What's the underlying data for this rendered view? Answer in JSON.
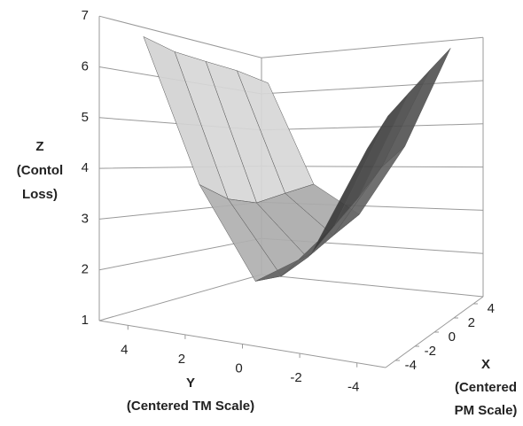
{
  "chart_data": {
    "type": "surface",
    "z_label": [
      "Z",
      "(Contol",
      "Loss)"
    ],
    "y_label": [
      "Y",
      "(Centered TM Scale)"
    ],
    "x_label": [
      "X",
      "(Centered",
      "PM Scale)"
    ],
    "x": [
      -4,
      -2,
      0,
      2,
      4
    ],
    "y": [
      4,
      2,
      0,
      -2,
      -4
    ],
    "z": [
      [
        6.8,
        4.0,
        2.2,
        3.0,
        5.5
      ],
      [
        6.6,
        3.6,
        2.1,
        3.4,
        6.0
      ],
      [
        6.5,
        3.4,
        2.3,
        3.8,
        6.3
      ],
      [
        6.4,
        3.5,
        2.6,
        4.3,
        6.6
      ],
      [
        6.2,
        3.6,
        2.9,
        4.6,
        6.9
      ]
    ],
    "xlim": [
      -5,
      5
    ],
    "ylim": [
      -5,
      5
    ],
    "zlim": [
      1,
      7
    ],
    "xticks": [
      -4,
      -2,
      0,
      2,
      4
    ],
    "yticks": [
      4,
      2,
      0,
      -2,
      -4
    ],
    "zticks": [
      1,
      2,
      3,
      4,
      5,
      6,
      7
    ],
    "grid": true,
    "color": "#808080"
  }
}
